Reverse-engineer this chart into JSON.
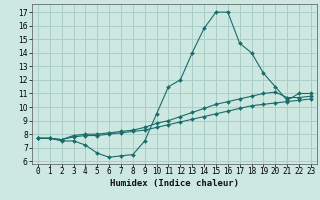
{
  "xlabel": "Humidex (Indice chaleur)",
  "bg_color": "#cce8e0",
  "grid_color": "#aacfc8",
  "line_color": "#1a6b6b",
  "xlim": [
    -0.5,
    23.5
  ],
  "ylim": [
    5.8,
    17.6
  ],
  "xticks": [
    0,
    1,
    2,
    3,
    4,
    5,
    6,
    7,
    8,
    9,
    10,
    11,
    12,
    13,
    14,
    15,
    16,
    17,
    18,
    19,
    20,
    21,
    22,
    23
  ],
  "yticks": [
    6,
    7,
    8,
    9,
    10,
    11,
    12,
    13,
    14,
    15,
    16,
    17
  ],
  "series1_x": [
    0,
    1,
    2,
    3,
    4,
    5,
    6,
    7,
    8,
    9,
    10,
    11,
    12,
    13,
    14,
    15,
    16,
    17,
    18,
    19,
    20,
    21,
    22,
    23
  ],
  "series1_y": [
    7.7,
    7.7,
    7.5,
    7.5,
    7.2,
    6.6,
    6.3,
    6.4,
    6.5,
    7.5,
    9.5,
    11.5,
    12.0,
    14.0,
    15.8,
    17.0,
    17.0,
    14.7,
    14.0,
    12.5,
    11.5,
    10.5,
    11.0,
    11.0
  ],
  "series2_x": [
    0,
    1,
    2,
    3,
    4,
    5,
    6,
    7,
    8,
    9,
    10,
    11,
    12,
    13,
    14,
    15,
    16,
    17,
    18,
    19,
    20,
    21,
    22,
    23
  ],
  "series2_y": [
    7.7,
    7.7,
    7.6,
    7.9,
    8.0,
    8.0,
    8.1,
    8.2,
    8.3,
    8.5,
    8.8,
    9.0,
    9.3,
    9.6,
    9.9,
    10.2,
    10.4,
    10.6,
    10.8,
    11.0,
    11.1,
    10.7,
    10.7,
    10.8
  ],
  "series3_x": [
    0,
    1,
    2,
    3,
    4,
    5,
    6,
    7,
    8,
    9,
    10,
    11,
    12,
    13,
    14,
    15,
    16,
    17,
    18,
    19,
    20,
    21,
    22,
    23
  ],
  "series3_y": [
    7.7,
    7.7,
    7.6,
    7.8,
    7.9,
    7.9,
    8.0,
    8.1,
    8.2,
    8.3,
    8.5,
    8.7,
    8.9,
    9.1,
    9.3,
    9.5,
    9.7,
    9.9,
    10.1,
    10.2,
    10.3,
    10.4,
    10.5,
    10.6
  ],
  "tick_fontsize": 5.5,
  "xlabel_fontsize": 6.5,
  "marker_size": 2.0,
  "line_width": 0.8
}
